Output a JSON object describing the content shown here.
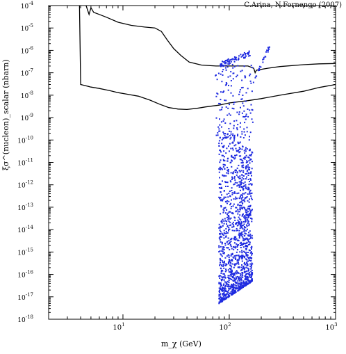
{
  "credit": "C.Arina, N.Fornengo (2007)",
  "chart_data": {
    "type": "scatter",
    "title": "",
    "xlabel": "m_χ (GeV)",
    "ylabel": "ξσ^(nucleon)_scalar (nbarn)",
    "x_scale": "log",
    "y_scale": "log",
    "xlim": [
      2,
      1000
    ],
    "ylim": [
      1e-18,
      0.0001
    ],
    "x_tick_labels": [
      "10^1",
      "10^2",
      "10^3"
    ],
    "y_tick_labels": [
      "10^-4",
      "10^-5",
      "10^-6",
      "10^-7",
      "10^-8",
      "10^-9",
      "10^-10",
      "10^-11",
      "10^-12",
      "10^-13",
      "10^-14",
      "10^-15",
      "10^-16",
      "10^-17",
      "10^-18"
    ],
    "grid": false,
    "series": [
      {
        "kind": "line",
        "color": "#000000",
        "points": [
          [
            3.9,
            0.0001
          ],
          [
            4.0,
            3e-08
          ],
          [
            5,
            2.3e-08
          ],
          [
            6,
            2e-08
          ],
          [
            7.5,
            1.6e-08
          ],
          [
            9,
            1.3e-08
          ],
          [
            11,
            1.1e-08
          ],
          [
            14,
            9e-09
          ],
          [
            18,
            6e-09
          ],
          [
            22,
            4e-09
          ],
          [
            27,
            2.8e-09
          ],
          [
            33,
            2.4e-09
          ],
          [
            40,
            2.3e-09
          ],
          [
            50,
            2.6e-09
          ],
          [
            60,
            3e-09
          ],
          [
            80,
            3.6e-09
          ],
          [
            100,
            4.5e-09
          ],
          [
            150,
            5.7e-09
          ],
          [
            200,
            7e-09
          ],
          [
            300,
            1e-08
          ],
          [
            500,
            1.5e-08
          ],
          [
            700,
            2.2e-08
          ],
          [
            1000,
            3e-08
          ]
        ]
      },
      {
        "kind": "line",
        "color": "#000000",
        "points": [
          [
            4.5,
            0.0001
          ],
          [
            4.8,
            4e-05
          ],
          [
            5.0,
            8e-05
          ],
          [
            5.3,
            5e-05
          ],
          [
            6,
            4e-05
          ],
          [
            7,
            3e-05
          ],
          [
            9,
            1.8e-05
          ],
          [
            12,
            1.3e-05
          ],
          [
            16,
            1.1e-05
          ],
          [
            20,
            1e-05
          ],
          [
            23,
            7e-06
          ],
          [
            26,
            3e-06
          ],
          [
            30,
            1.2e-06
          ],
          [
            35,
            6e-07
          ],
          [
            42,
            3e-07
          ],
          [
            55,
            2.2e-07
          ],
          [
            75,
            2e-07
          ],
          [
            100,
            2e-07
          ],
          [
            130,
            2e-07
          ],
          [
            150,
            2e-07
          ],
          [
            170,
            1.6e-07
          ],
          [
            175,
            1e-07
          ],
          [
            180,
            1.3e-07
          ],
          [
            230,
            1.6e-07
          ],
          [
            300,
            1.9e-07
          ],
          [
            500,
            2.3e-07
          ],
          [
            700,
            2.5e-07
          ],
          [
            1000,
            2.6e-07
          ]
        ]
      },
      {
        "kind": "scatter",
        "color": "#1f2be0",
        "x_range": [
          72,
          240
        ],
        "y_range": [
          5e-18,
          1e-05
        ],
        "note": ""
      }
    ]
  }
}
